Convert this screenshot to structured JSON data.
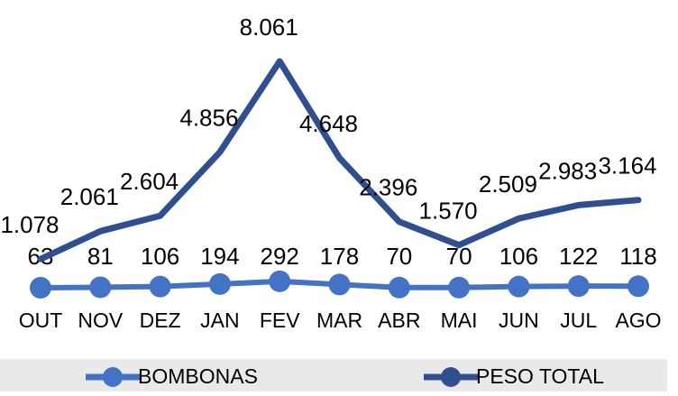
{
  "chart_data": {
    "type": "line",
    "categories": [
      "OUT",
      "NOV",
      "DEZ",
      "JAN",
      "FEV",
      "MAR",
      "ABR",
      "MAI",
      "JUN",
      "JUL",
      "AGO"
    ],
    "series": [
      {
        "name": "BOMBONAS",
        "color": "#4472c4",
        "values": [
          63,
          81,
          106,
          194,
          292,
          178,
          70,
          70,
          106,
          122,
          118
        ]
      },
      {
        "name": "PESO TOTAL",
        "color": "#2f4f8f",
        "values": [
          1078,
          2061,
          2604,
          4856,
          8061,
          4648,
          2396,
          1570,
          2509,
          2983,
          3164
        ],
        "value_labels": [
          "1.078",
          "2.061",
          "2.604",
          "4.856",
          "8.061",
          "4.648",
          "2.396",
          "1.570",
          "2.509",
          "2.983",
          "3.164"
        ]
      }
    ],
    "legend": "bottom"
  }
}
